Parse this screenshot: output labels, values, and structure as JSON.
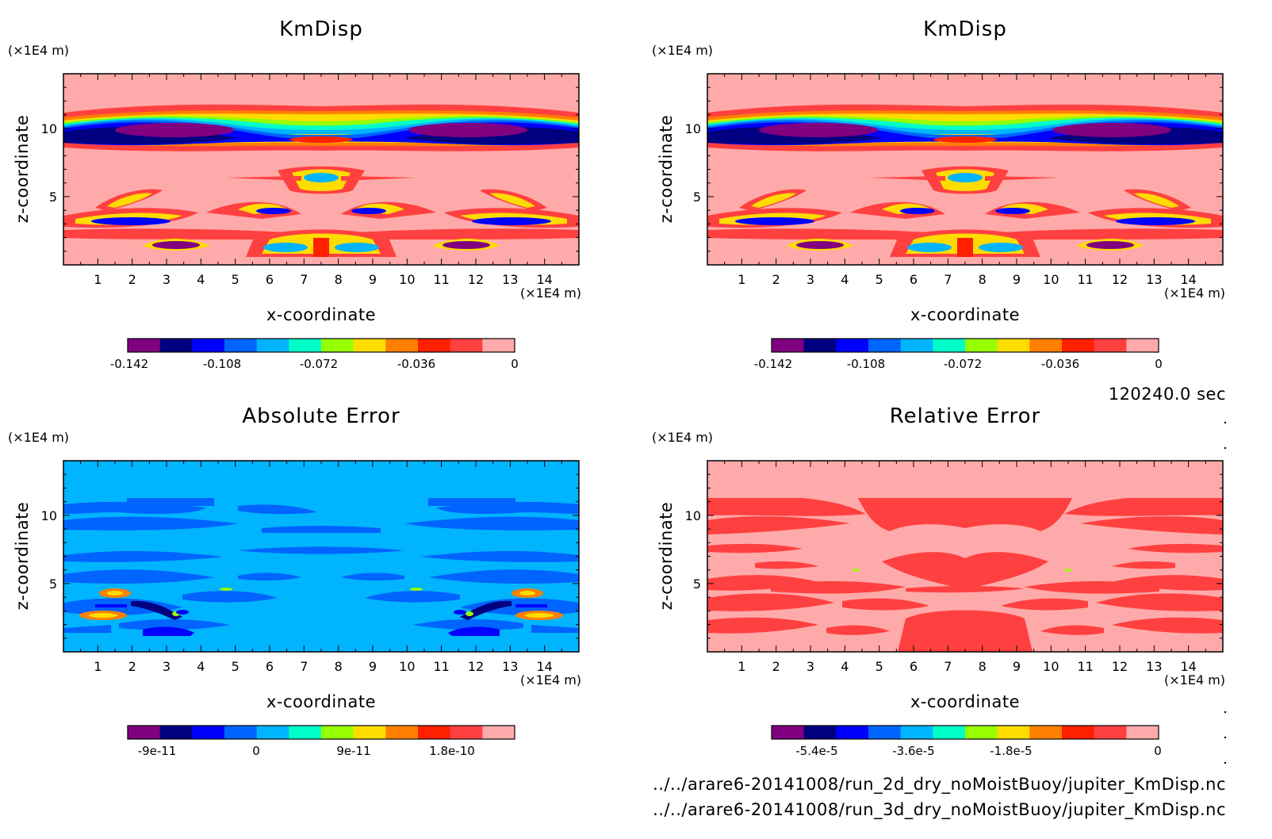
{
  "time_label": "120240.0 sec",
  "file_paths": [
    "../../arare6-20141008/run_2d_dry_noMoistBuoy/jupiter_KmDisp.nc",
    "../../arare6-20141008/run_3d_dry_noMoistBuoy/jupiter_KmDisp.nc"
  ],
  "chart_data": [
    {
      "type": "heatmap",
      "title": "KmDisp",
      "xlabel": "x-coordinate",
      "ylabel": "z-coordinate",
      "x_unit": "(×1E4 m)",
      "y_unit": "(×1E4 m)",
      "xlim": [
        0,
        15
      ],
      "ylim": [
        0,
        14
      ],
      "x_ticks": [
        "1",
        "2",
        "3",
        "4",
        "5",
        "6",
        "7",
        "8",
        "9",
        "10",
        "11",
        "12",
        "13",
        "14"
      ],
      "y_ticks": [
        "5",
        "10"
      ],
      "levels": [
        -0.156,
        -0.144,
        -0.132,
        -0.12,
        -0.108,
        -0.096,
        -0.084,
        -0.072,
        -0.06,
        -0.048,
        -0.036,
        -0.024,
        -0.012,
        0
      ],
      "colorbar_ticks": [
        "-0.142",
        "-0.108",
        "-0.072",
        "-0.036",
        "0"
      ],
      "colors": [
        "#800080",
        "#000080",
        "#0000ff",
        "#0064ff",
        "#00b4ff",
        "#00ffc8",
        "#96ff00",
        "#ffdc00",
        "#ff8000",
        "#ff2000",
        "#ff4040",
        "#ffaaaa"
      ]
    },
    {
      "type": "heatmap",
      "title": "KmDisp",
      "xlabel": "x-coordinate",
      "ylabel": "z-coordinate",
      "x_unit": "(×1E4 m)",
      "y_unit": "(×1E4 m)",
      "xlim": [
        0,
        15
      ],
      "ylim": [
        0,
        14
      ],
      "x_ticks": [
        "1",
        "2",
        "3",
        "4",
        "5",
        "6",
        "7",
        "8",
        "9",
        "10",
        "11",
        "12",
        "13",
        "14"
      ],
      "y_ticks": [
        "5",
        "10"
      ],
      "colorbar_ticks": [
        "-0.142",
        "-0.108",
        "-0.072",
        "-0.036",
        "0"
      ],
      "colors": [
        "#800080",
        "#000080",
        "#0000ff",
        "#0064ff",
        "#00b4ff",
        "#00ffc8",
        "#96ff00",
        "#ffdc00",
        "#ff8000",
        "#ff2000",
        "#ff4040",
        "#ffaaaa"
      ]
    },
    {
      "type": "heatmap",
      "title": "Absolute Error",
      "xlabel": "x-coordinate",
      "ylabel": "z-coordinate",
      "x_unit": "(×1E4 m)",
      "y_unit": "(×1E4 m)",
      "xlim": [
        0,
        15
      ],
      "ylim": [
        0,
        14
      ],
      "x_ticks": [
        "1",
        "2",
        "3",
        "4",
        "5",
        "6",
        "7",
        "8",
        "9",
        "10",
        "11",
        "12",
        "13",
        "14"
      ],
      "y_ticks": [
        "5",
        "10"
      ],
      "colorbar_ticks": [
        "-9e-11",
        "0",
        "9e-11",
        "1.8e-10"
      ],
      "colors": [
        "#800080",
        "#000080",
        "#0000ff",
        "#0064ff",
        "#00b4ff",
        "#00ffc8",
        "#96ff00",
        "#ffdc00",
        "#ff8000",
        "#ff2000",
        "#ff4040",
        "#ffaaaa"
      ]
    },
    {
      "type": "heatmap",
      "title": "Relative Error",
      "xlabel": "x-coordinate",
      "ylabel": "z-coordinate",
      "x_unit": "(×1E4 m)",
      "y_unit": "(×1E4 m)",
      "xlim": [
        0,
        15
      ],
      "ylim": [
        0,
        14
      ],
      "x_ticks": [
        "1",
        "2",
        "3",
        "4",
        "5",
        "6",
        "7",
        "8",
        "9",
        "10",
        "11",
        "12",
        "13",
        "14"
      ],
      "y_ticks": [
        "5",
        "10"
      ],
      "colorbar_ticks": [
        "-5.4e-5",
        "-3.6e-5",
        "-1.8e-5",
        "0"
      ],
      "colors": [
        "#800080",
        "#000080",
        "#0000ff",
        "#0064ff",
        "#00b4ff",
        "#00ffc8",
        "#96ff00",
        "#ffdc00",
        "#ff8000",
        "#ff2000",
        "#ff4040",
        "#ffaaaa"
      ]
    }
  ]
}
